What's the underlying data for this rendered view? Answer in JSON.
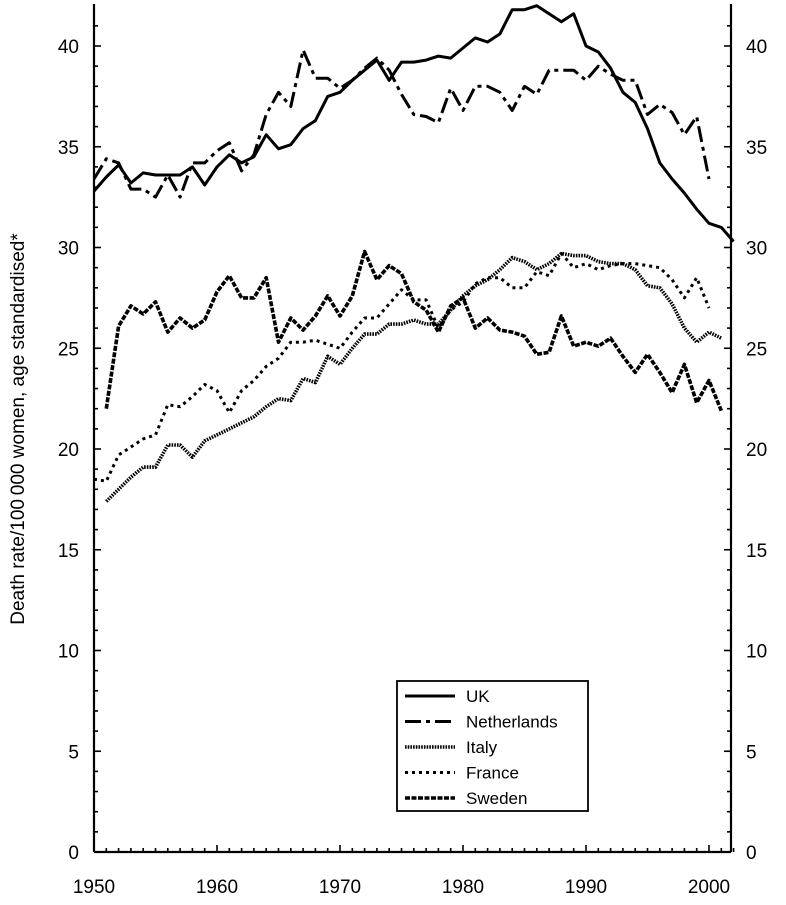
{
  "chart_data": {
    "type": "line",
    "title": "",
    "xlabel": "",
    "ylabel": "Death rate/100 000 women, age standardised*",
    "xlim": [
      1950,
      2003
    ],
    "ylim": [
      0,
      42
    ],
    "x_ticks": [
      1950,
      1960,
      1970,
      1980,
      1990,
      2000
    ],
    "x_tick_labels": [
      "1950",
      "1960",
      "1970",
      "1980",
      "1990",
      "2000"
    ],
    "y_ticks": [
      0,
      5,
      10,
      15,
      20,
      25,
      30,
      35,
      40
    ],
    "y_tick_labels": [
      "0",
      "5",
      "10",
      "15",
      "20",
      "25",
      "30",
      "35",
      "40"
    ],
    "right_axis_duplicate": true,
    "grid": false,
    "legend_position": "bottom-center",
    "series": [
      {
        "name": "UK",
        "style": "solid",
        "color": "#000000",
        "x": [
          1950,
          1951,
          1952,
          1953,
          1954,
          1955,
          1956,
          1957,
          1958,
          1959,
          1960,
          1961,
          1962,
          1963,
          1964,
          1965,
          1966,
          1967,
          1968,
          1969,
          1970,
          1971,
          1972,
          1973,
          1974,
          1975,
          1976,
          1977,
          1978,
          1979,
          1980,
          1981,
          1982,
          1983,
          1984,
          1985,
          1986,
          1987,
          1988,
          1989,
          1990,
          1991,
          1992,
          1993,
          1994,
          1995,
          1996,
          1997,
          1998,
          1999,
          2000,
          2001,
          2002
        ],
        "y": [
          32.8,
          33.5,
          34.1,
          33.2,
          33.7,
          33.6,
          33.6,
          33.6,
          34.0,
          33.1,
          34.0,
          34.6,
          34.2,
          34.5,
          35.6,
          34.9,
          35.1,
          35.9,
          36.3,
          37.5,
          37.7,
          38.3,
          38.8,
          39.3,
          38.3,
          39.2,
          39.2,
          39.3,
          39.5,
          39.4,
          39.9,
          40.4,
          40.2,
          40.6,
          41.8,
          41.8,
          42.0,
          41.6,
          41.2,
          41.6,
          40.0,
          39.7,
          38.9,
          37.7,
          37.2,
          35.9,
          34.2,
          33.4,
          32.7,
          31.9,
          31.2,
          31.0,
          30.3
        ]
      },
      {
        "name": "Netherlands",
        "style": "dashdot",
        "color": "#000000",
        "x": [
          1950,
          1951,
          1952,
          1953,
          1954,
          1955,
          1956,
          1957,
          1958,
          1959,
          1960,
          1961,
          1962,
          1963,
          1964,
          1965,
          1966,
          1967,
          1968,
          1969,
          1970,
          1971,
          1972,
          1973,
          1974,
          1975,
          1976,
          1977,
          1978,
          1979,
          1980,
          1981,
          1982,
          1983,
          1984,
          1985,
          1986,
          1987,
          1988,
          1989,
          1990,
          1991,
          1992,
          1993,
          1994,
          1995,
          1996,
          1997,
          1998,
          1999,
          2000
        ],
        "y": [
          33.4,
          34.4,
          34.2,
          32.9,
          32.9,
          32.5,
          33.6,
          32.5,
          34.2,
          34.2,
          34.8,
          35.2,
          33.8,
          34.6,
          36.6,
          37.7,
          37.0,
          39.8,
          38.4,
          38.4,
          37.9,
          38.3,
          38.9,
          39.4,
          38.8,
          37.6,
          36.6,
          36.5,
          36.2,
          37.9,
          36.8,
          38.0,
          38.0,
          37.7,
          36.8,
          38.0,
          37.6,
          38.8,
          38.8,
          38.8,
          38.3,
          39.0,
          38.6,
          38.3,
          38.3,
          36.6,
          37.1,
          36.7,
          35.6,
          36.5,
          33.4
        ]
      },
      {
        "name": "Italy",
        "style": "dense",
        "color": "#000000",
        "x": [
          1951,
          1952,
          1953,
          1954,
          1955,
          1956,
          1957,
          1958,
          1959,
          1960,
          1961,
          1962,
          1963,
          1964,
          1965,
          1966,
          1967,
          1968,
          1969,
          1970,
          1971,
          1972,
          1973,
          1974,
          1975,
          1976,
          1977,
          1978,
          1979,
          1980,
          1981,
          1982,
          1983,
          1984,
          1985,
          1986,
          1987,
          1988,
          1989,
          1990,
          1991,
          1992,
          1993,
          1994,
          1995,
          1996,
          1997,
          1998,
          1999,
          2000,
          2001
        ],
        "y": [
          17.4,
          18.0,
          18.6,
          19.1,
          19.1,
          20.2,
          20.2,
          19.6,
          20.4,
          20.7,
          21.0,
          21.3,
          21.6,
          22.1,
          22.5,
          22.4,
          23.5,
          23.3,
          24.6,
          24.2,
          25.0,
          25.7,
          25.7,
          26.2,
          26.2,
          26.4,
          26.2,
          26.2,
          26.9,
          27.6,
          28.1,
          28.4,
          28.9,
          29.5,
          29.3,
          28.9,
          29.2,
          29.7,
          29.6,
          29.6,
          29.3,
          29.2,
          29.2,
          28.9,
          28.1,
          28.0,
          27.2,
          26.0,
          25.3,
          25.8,
          25.5
        ]
      },
      {
        "name": "France",
        "style": "dotted",
        "color": "#000000",
        "x": [
          1950,
          1951,
          1952,
          1953,
          1954,
          1955,
          1956,
          1957,
          1958,
          1959,
          1960,
          1961,
          1962,
          1963,
          1964,
          1965,
          1966,
          1967,
          1968,
          1969,
          1970,
          1971,
          1972,
          1973,
          1974,
          1975,
          1976,
          1977,
          1978,
          1979,
          1980,
          1981,
          1982,
          1983,
          1984,
          1985,
          1986,
          1987,
          1988,
          1989,
          1990,
          1991,
          1992,
          1993,
          1994,
          1995,
          1996,
          1997,
          1998,
          1999,
          2000
        ],
        "y": [
          18.5,
          18.4,
          19.7,
          20.1,
          20.5,
          20.7,
          22.2,
          22.1,
          22.6,
          23.2,
          22.9,
          21.8,
          22.9,
          23.4,
          24.1,
          24.5,
          25.3,
          25.3,
          25.4,
          25.2,
          25.0,
          25.8,
          26.5,
          26.5,
          27.2,
          27.9,
          27.4,
          27.4,
          26.0,
          26.9,
          27.3,
          28.2,
          28.5,
          28.5,
          28.0,
          28.0,
          28.8,
          28.6,
          29.7,
          29.0,
          29.2,
          28.9,
          29.1,
          29.2,
          29.2,
          29.1,
          29.0,
          28.4,
          27.5,
          28.5,
          27.0
        ]
      },
      {
        "name": "Sweden",
        "style": "heavy-dash",
        "color": "#000000",
        "x": [
          1951,
          1952,
          1953,
          1954,
          1955,
          1956,
          1957,
          1958,
          1959,
          1960,
          1961,
          1962,
          1963,
          1964,
          1965,
          1966,
          1967,
          1968,
          1969,
          1970,
          1971,
          1972,
          1973,
          1974,
          1975,
          1976,
          1977,
          1978,
          1979,
          1980,
          1981,
          1982,
          1983,
          1984,
          1985,
          1986,
          1987,
          1988,
          1989,
          1990,
          1991,
          1992,
          1993,
          1994,
          1995,
          1996,
          1997,
          1998,
          1999,
          2000,
          2001
        ],
        "y": [
          22.0,
          26.1,
          27.1,
          26.7,
          27.3,
          25.8,
          26.5,
          26.0,
          26.4,
          27.8,
          28.6,
          27.5,
          27.5,
          28.5,
          25.3,
          26.5,
          25.9,
          26.6,
          27.6,
          26.6,
          27.6,
          29.8,
          28.4,
          29.1,
          28.7,
          27.3,
          26.9,
          25.8,
          27.1,
          27.5,
          26.0,
          26.5,
          25.9,
          25.8,
          25.6,
          24.7,
          24.8,
          26.6,
          25.1,
          25.3,
          25.1,
          25.5,
          24.6,
          23.8,
          24.7,
          23.8,
          22.8,
          24.2,
          22.3,
          23.4,
          21.9
        ]
      }
    ]
  }
}
